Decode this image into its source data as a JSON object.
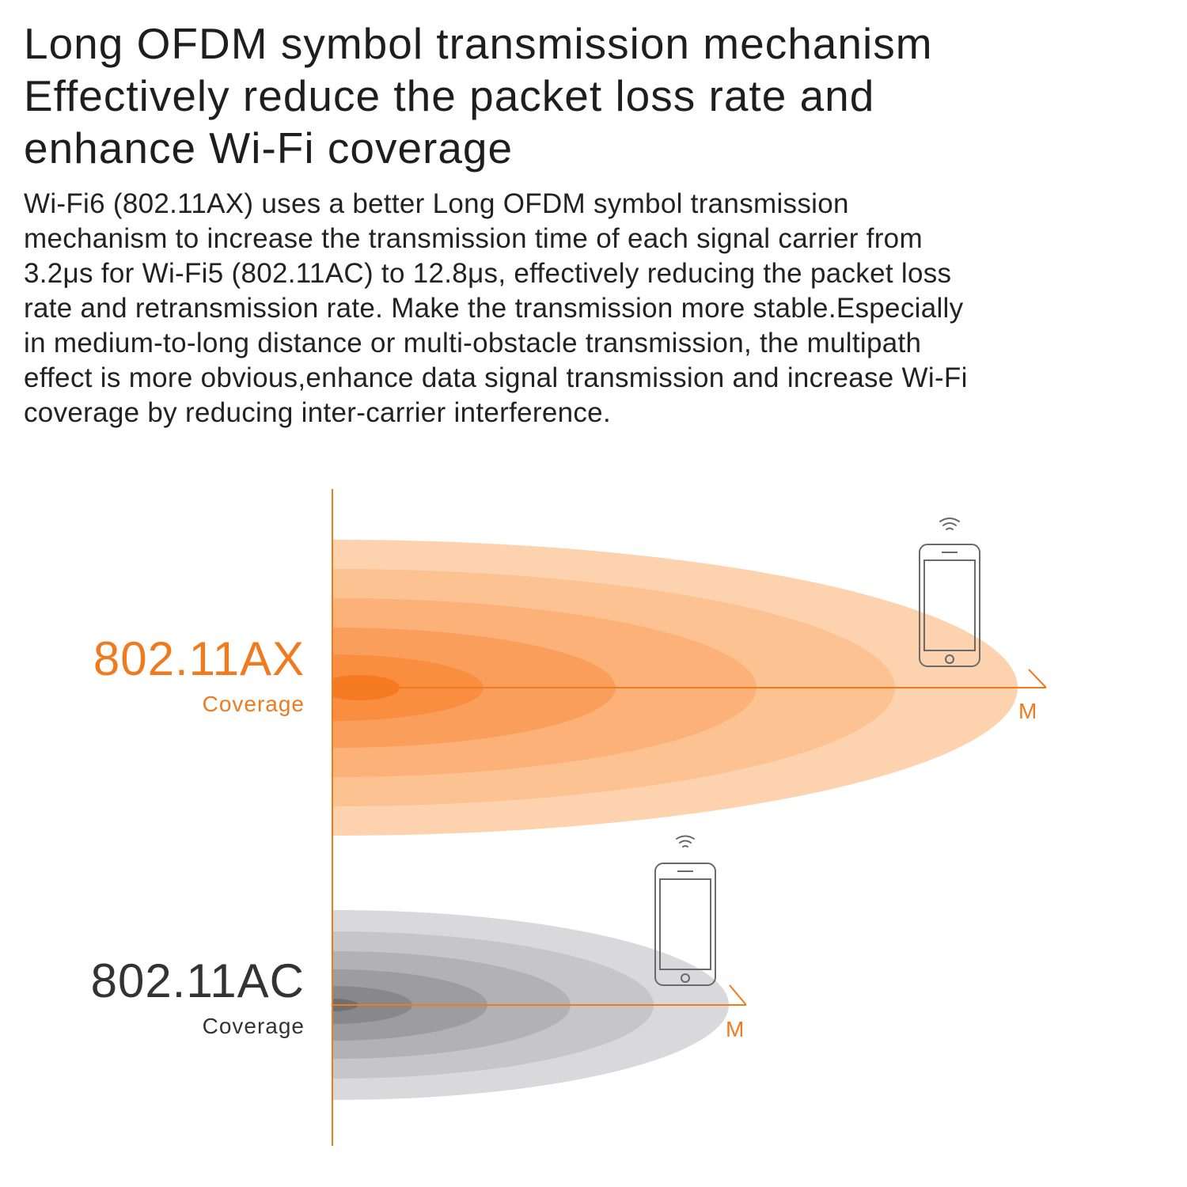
{
  "headline": {
    "lines": [
      "Long OFDM symbol transmission mechanism",
      "Effectively reduce the packet loss rate and",
      "enhance Wi-Fi coverage"
    ]
  },
  "body": {
    "lines": [
      "Wi-Fi6 (802.11AX) uses a better Long OFDM symbol transmission",
      "mechanism to increase the transmission time of each signal carrier from",
      "3.2μs for Wi-Fi5 (802.11AC) to 12.8μs, effectively reducing the packet loss",
      "rate and retransmission rate. Make the transmission more stable.Especially",
      "in medium-to-long distance or multi-obstacle transmission, the multipath",
      "effect is more obvious,enhance data signal transmission and increase Wi-Fi",
      "coverage by reducing inter-carrier interference."
    ]
  },
  "diagram": {
    "ax": {
      "title": "802.11AX",
      "subtitle": "Coverage",
      "unit": "M",
      "color": "#f07a1e",
      "ring_colors": [
        "#fdd2ae",
        "#fcc291",
        "#fbb177",
        "#fa9f5b",
        "#f98d40",
        "#f67a22"
      ],
      "icons": [
        "wifi-icon",
        "phone-icon"
      ]
    },
    "ac": {
      "title": "802.11AC",
      "subtitle": "Coverage",
      "unit": "M",
      "color": "#333333",
      "ring_colors": [
        "#d9d9db",
        "#c6c6c8",
        "#b2b2b4",
        "#9d9da0",
        "#88888b",
        "#707073"
      ],
      "icons": [
        "wifi-icon",
        "phone-icon"
      ]
    },
    "axis_color": "#f07a1e"
  }
}
